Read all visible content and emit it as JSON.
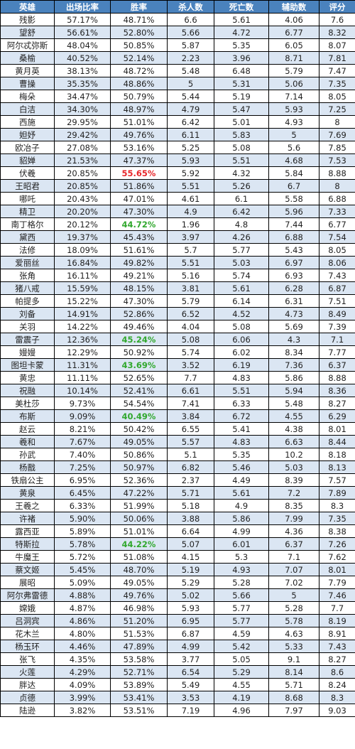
{
  "table": {
    "headers": [
      "英雄",
      "出场比率",
      "胜率",
      "杀人数",
      "死亡数",
      "辅助数",
      "评分"
    ],
    "highlight_colors": {
      "red": "#e8262a",
      "green": "#31a82e"
    },
    "rows": [
      {
        "cells": [
          "残影",
          "57.17%",
          "48.71%",
          "6.6",
          "5.61",
          "4.06",
          "7.6"
        ]
      },
      {
        "cells": [
          "望舒",
          "56.61%",
          "52.80%",
          "5.66",
          "4.72",
          "6.77",
          "8.32"
        ]
      },
      {
        "cells": [
          "阿尔忒弥斯",
          "48.04%",
          "50.85%",
          "5.87",
          "5.35",
          "6.05",
          "8.07"
        ]
      },
      {
        "cells": [
          "桑榆",
          "40.52%",
          "52.14%",
          "2.23",
          "3.96",
          "8.71",
          "7.81"
        ]
      },
      {
        "cells": [
          "黄月英",
          "38.13%",
          "48.72%",
          "5.48",
          "6.48",
          "5.79",
          "7.47"
        ]
      },
      {
        "cells": [
          "曹操",
          "35.35%",
          "48.86%",
          "5",
          "5.31",
          "5.06",
          "7.35"
        ]
      },
      {
        "cells": [
          "梅朵",
          "34.47%",
          "50.79%",
          "5.44",
          "5.19",
          "7.14",
          "8.05"
        ]
      },
      {
        "cells": [
          "白洁",
          "34.30%",
          "48.97%",
          "4.79",
          "5.47",
          "5.93",
          "7.25"
        ]
      },
      {
        "cells": [
          "西施",
          "29.95%",
          "51.01%",
          "6.42",
          "5.01",
          "4.93",
          "8"
        ]
      },
      {
        "cells": [
          "妲妤",
          "29.42%",
          "49.76%",
          "6.11",
          "5.83",
          "5",
          "7.69"
        ]
      },
      {
        "cells": [
          "欧冶子",
          "27.08%",
          "53.16%",
          "5.25",
          "5.08",
          "5.6",
          "7.85"
        ]
      },
      {
        "cells": [
          "貂婵",
          "21.53%",
          "47.37%",
          "5.93",
          "5.51",
          "4.68",
          "7.53"
        ]
      },
      {
        "cells": [
          "伏羲",
          "20.85%",
          "55.65%",
          "5.92",
          "4.32",
          "5.84",
          "8.88"
        ],
        "highlight": {
          "col": 2,
          "color": "red"
        }
      },
      {
        "cells": [
          "王昭君",
          "20.85%",
          "51.86%",
          "5.51",
          "5.26",
          "6.7",
          "8"
        ]
      },
      {
        "cells": [
          "哪吒",
          "20.43%",
          "47.01%",
          "4.61",
          "6.1",
          "5.58",
          "6.88"
        ]
      },
      {
        "cells": [
          "精卫",
          "20.20%",
          "47.30%",
          "4.9",
          "6.42",
          "5.96",
          "7.33"
        ]
      },
      {
        "cells": [
          "南丁格尔",
          "20.12%",
          "44.72%",
          "1.96",
          "4.8",
          "7.44",
          "6.77"
        ],
        "highlight": {
          "col": 2,
          "color": "green"
        }
      },
      {
        "cells": [
          "黛西",
          "19.37%",
          "45.43%",
          "3.97",
          "4.26",
          "6.88",
          "7.54"
        ]
      },
      {
        "cells": [
          "法修",
          "18.09%",
          "51.61%",
          "5.7",
          "5.77",
          "5.43",
          "8.05"
        ]
      },
      {
        "cells": [
          "爱丽丝",
          "16.84%",
          "49.82%",
          "5.51",
          "5.03",
          "6.97",
          "8.06"
        ]
      },
      {
        "cells": [
          "张角",
          "16.11%",
          "49.21%",
          "5.16",
          "5.74",
          "6.93",
          "7.43"
        ]
      },
      {
        "cells": [
          "猪八戒",
          "15.59%",
          "48.15%",
          "3.81",
          "5.61",
          "6.28",
          "6.87"
        ]
      },
      {
        "cells": [
          "帕提多",
          "15.22%",
          "47.30%",
          "5.79",
          "6.14",
          "6.31",
          "7.51"
        ]
      },
      {
        "cells": [
          "刘备",
          "14.91%",
          "52.86%",
          "6.52",
          "4.52",
          "4.73",
          "8.49"
        ]
      },
      {
        "cells": [
          "关羽",
          "14.22%",
          "49.46%",
          "4.04",
          "5.08",
          "5.69",
          "7.39"
        ]
      },
      {
        "cells": [
          "雷震子",
          "12.36%",
          "45.24%",
          "5.08",
          "6.06",
          "4.3",
          "7.1"
        ],
        "highlight": {
          "col": 2,
          "color": "green"
        }
      },
      {
        "cells": [
          "嫚嫚",
          "12.29%",
          "50.92%",
          "5.74",
          "6.02",
          "8.34",
          "7.77"
        ]
      },
      {
        "cells": [
          "图坦卡蒙",
          "11.31%",
          "43.69%",
          "3.52",
          "6.19",
          "7.36",
          "6.37"
        ],
        "highlight": {
          "col": 2,
          "color": "green"
        }
      },
      {
        "cells": [
          "黄忠",
          "11.11%",
          "52.65%",
          "7.7",
          "4.83",
          "5.86",
          "8.88"
        ]
      },
      {
        "cells": [
          "祝融",
          "10.14%",
          "52.41%",
          "6.61",
          "5.51",
          "5.94",
          "8.36"
        ]
      },
      {
        "cells": [
          "美杜莎",
          "9.73%",
          "54.54%",
          "7.41",
          "6.33",
          "5.48",
          "8.27"
        ]
      },
      {
        "cells": [
          "布斯",
          "9.09%",
          "40.49%",
          "3.84",
          "6.72",
          "4.55",
          "6.29"
        ],
        "highlight": {
          "col": 2,
          "color": "green"
        }
      },
      {
        "cells": [
          "赵云",
          "8.21%",
          "50.42%",
          "6.55",
          "5.41",
          "4.38",
          "8.01"
        ]
      },
      {
        "cells": [
          "羲和",
          "7.67%",
          "49.05%",
          "5.57",
          "4.83",
          "6.63",
          "8.44"
        ]
      },
      {
        "cells": [
          "孙武",
          "7.40%",
          "50.86%",
          "5.1",
          "5.35",
          "10.2",
          "8.18"
        ]
      },
      {
        "cells": [
          "杨戬",
          "7.25%",
          "50.97%",
          "6.82",
          "5.46",
          "5.03",
          "8.13"
        ]
      },
      {
        "cells": [
          "铁扇公主",
          "6.95%",
          "52.36%",
          "2.37",
          "4.49",
          "8.39",
          "7.57"
        ]
      },
      {
        "cells": [
          "黄泉",
          "6.45%",
          "47.22%",
          "5.71",
          "5.61",
          "7.2",
          "7.89"
        ]
      },
      {
        "cells": [
          "王羲之",
          "6.33%",
          "51.99%",
          "5.18",
          "4.9",
          "8.35",
          "8.3"
        ]
      },
      {
        "cells": [
          "许褚",
          "5.90%",
          "50.06%",
          "3.88",
          "5.86",
          "7.99",
          "7.35"
        ]
      },
      {
        "cells": [
          "露西亚",
          "5.89%",
          "51.01%",
          "6.64",
          "4.99",
          "4.36",
          "8.38"
        ]
      },
      {
        "cells": [
          "特斯拉",
          "5.78%",
          "44.22%",
          "5.07",
          "6.01",
          "6.37",
          "7.26"
        ],
        "highlight": {
          "col": 2,
          "color": "green"
        }
      },
      {
        "cells": [
          "牛魔王",
          "5.72%",
          "51.08%",
          "4.15",
          "5.3",
          "7.1",
          "7.62"
        ]
      },
      {
        "cells": [
          "蔡文姬",
          "5.45%",
          "48.70%",
          "5.19",
          "4.93",
          "7.07",
          "8.01"
        ]
      },
      {
        "cells": [
          "展昭",
          "5.09%",
          "49.05%",
          "5.29",
          "5.28",
          "7.02",
          "7.79"
        ]
      },
      {
        "cells": [
          "阿尔弗雷德",
          "4.88%",
          "49.76%",
          "5.02",
          "5.66",
          "5",
          "7.46"
        ]
      },
      {
        "cells": [
          "嫦娥",
          "4.87%",
          "46.98%",
          "5.93",
          "5.77",
          "5.28",
          "7.7"
        ]
      },
      {
        "cells": [
          "吕洞宾",
          "4.86%",
          "51.20%",
          "6.95",
          "5.77",
          "5.78",
          "8.19"
        ]
      },
      {
        "cells": [
          "花木兰",
          "4.80%",
          "51.53%",
          "6.87",
          "4.59",
          "4.63",
          "8.91"
        ]
      },
      {
        "cells": [
          "杨玉环",
          "4.46%",
          "47.89%",
          "4.99",
          "5.42",
          "5.33",
          "7.43"
        ]
      },
      {
        "cells": [
          "张飞",
          "4.35%",
          "53.58%",
          "3.77",
          "5.05",
          "9.1",
          "8.27"
        ]
      },
      {
        "cells": [
          "火莲",
          "4.29%",
          "52.71%",
          "6.54",
          "5.29",
          "8.14",
          "8.6"
        ]
      },
      {
        "cells": [
          "胖达",
          "4.09%",
          "53.89%",
          "5.49",
          "4.55",
          "5.71",
          "8.24"
        ]
      },
      {
        "cells": [
          "贞德",
          "3.99%",
          "53.41%",
          "3.53",
          "4.19",
          "8.68",
          "8.3"
        ]
      },
      {
        "cells": [
          "陆逊",
          "3.82%",
          "53.51%",
          "7.19",
          "4.96",
          "7.97",
          "9.03"
        ]
      }
    ]
  }
}
